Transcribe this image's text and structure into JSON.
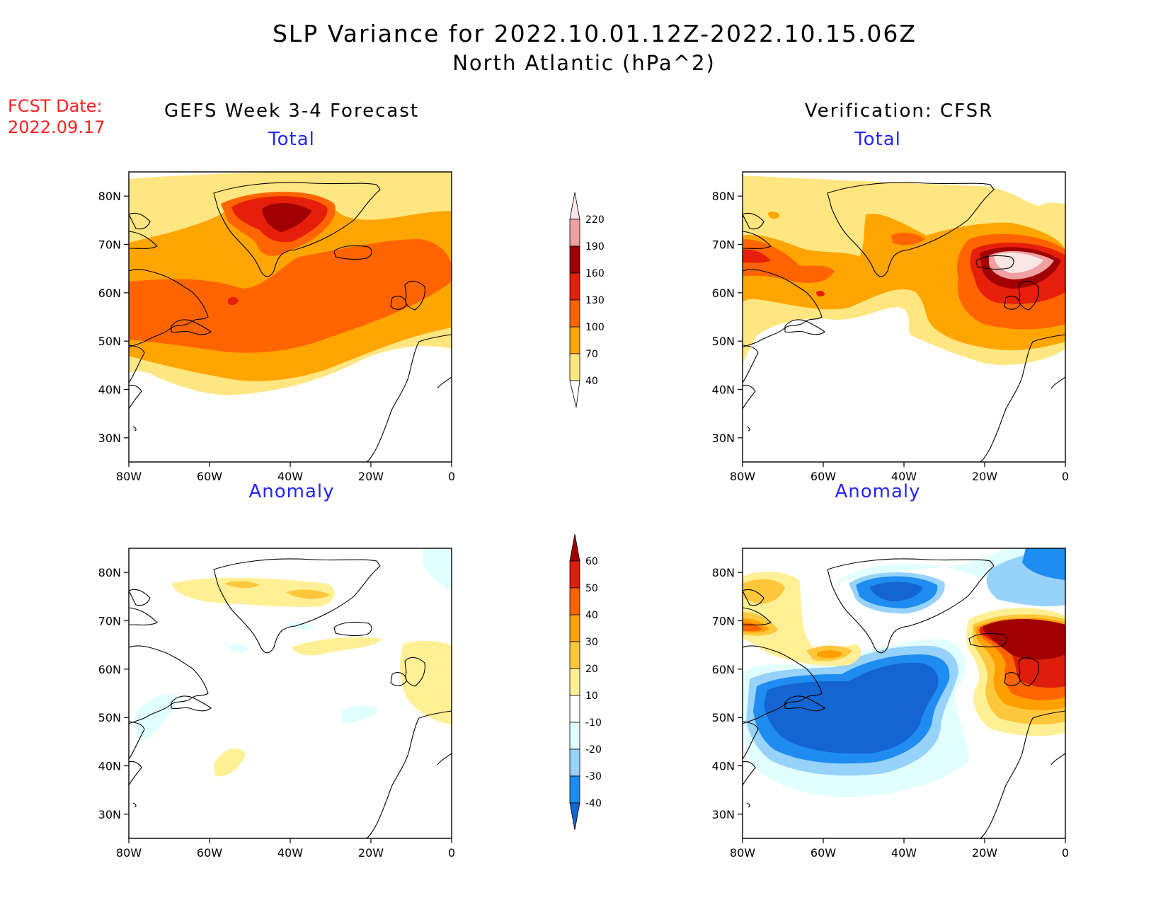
{
  "title_line1": "SLP Variance for 2022.10.01.12Z-2022.10.15.06Z",
  "title_line2": "North Atlantic (hPa^2)",
  "forecast_date_label": "FCST Date:",
  "forecast_date": "2022.09.17",
  "left_header": "GEFS Week 3-4 Forecast",
  "right_header": "Verification: CFSR",
  "panels": {
    "gefs_total": {
      "title": "Total"
    },
    "cfsr_total": {
      "title": "Total"
    },
    "gefs_anomaly": {
      "title": "Anomaly"
    },
    "cfsr_anomaly": {
      "title": "Anomaly"
    }
  },
  "lat_ticks": [
    "30N",
    "40N",
    "50N",
    "60N",
    "70N",
    "80N"
  ],
  "lon_ticks": [
    "80W",
    "60W",
    "40W",
    "20W",
    "0"
  ],
  "map_extent": {
    "lon": [
      -80,
      0
    ],
    "lat": [
      25,
      85
    ]
  },
  "total_colorbar": {
    "levels": [
      "40",
      "70",
      "100",
      "130",
      "160",
      "190",
      "220"
    ],
    "colors": [
      "#ffe680",
      "#ffa500",
      "#ff6400",
      "#e61e0a",
      "#a00000",
      "#f0a0a0",
      "#fbe6e6"
    ]
  },
  "anomaly_colorbar": {
    "levels": [
      "-40",
      "-30",
      "-20",
      "-10",
      "10",
      "20",
      "30",
      "40",
      "50",
      "60"
    ],
    "colors": [
      "#1464d2",
      "#1e8cf0",
      "#96d2fa",
      "#e1ffff",
      "#ffffff",
      "#fff096",
      "#ffc83c",
      "#ffa000",
      "#ff6400",
      "#dc1e0a",
      "#a00000"
    ]
  },
  "colors": {
    "title": "#000000",
    "forecast_date": "#ff2020",
    "panel_title": "#2424ff"
  }
}
